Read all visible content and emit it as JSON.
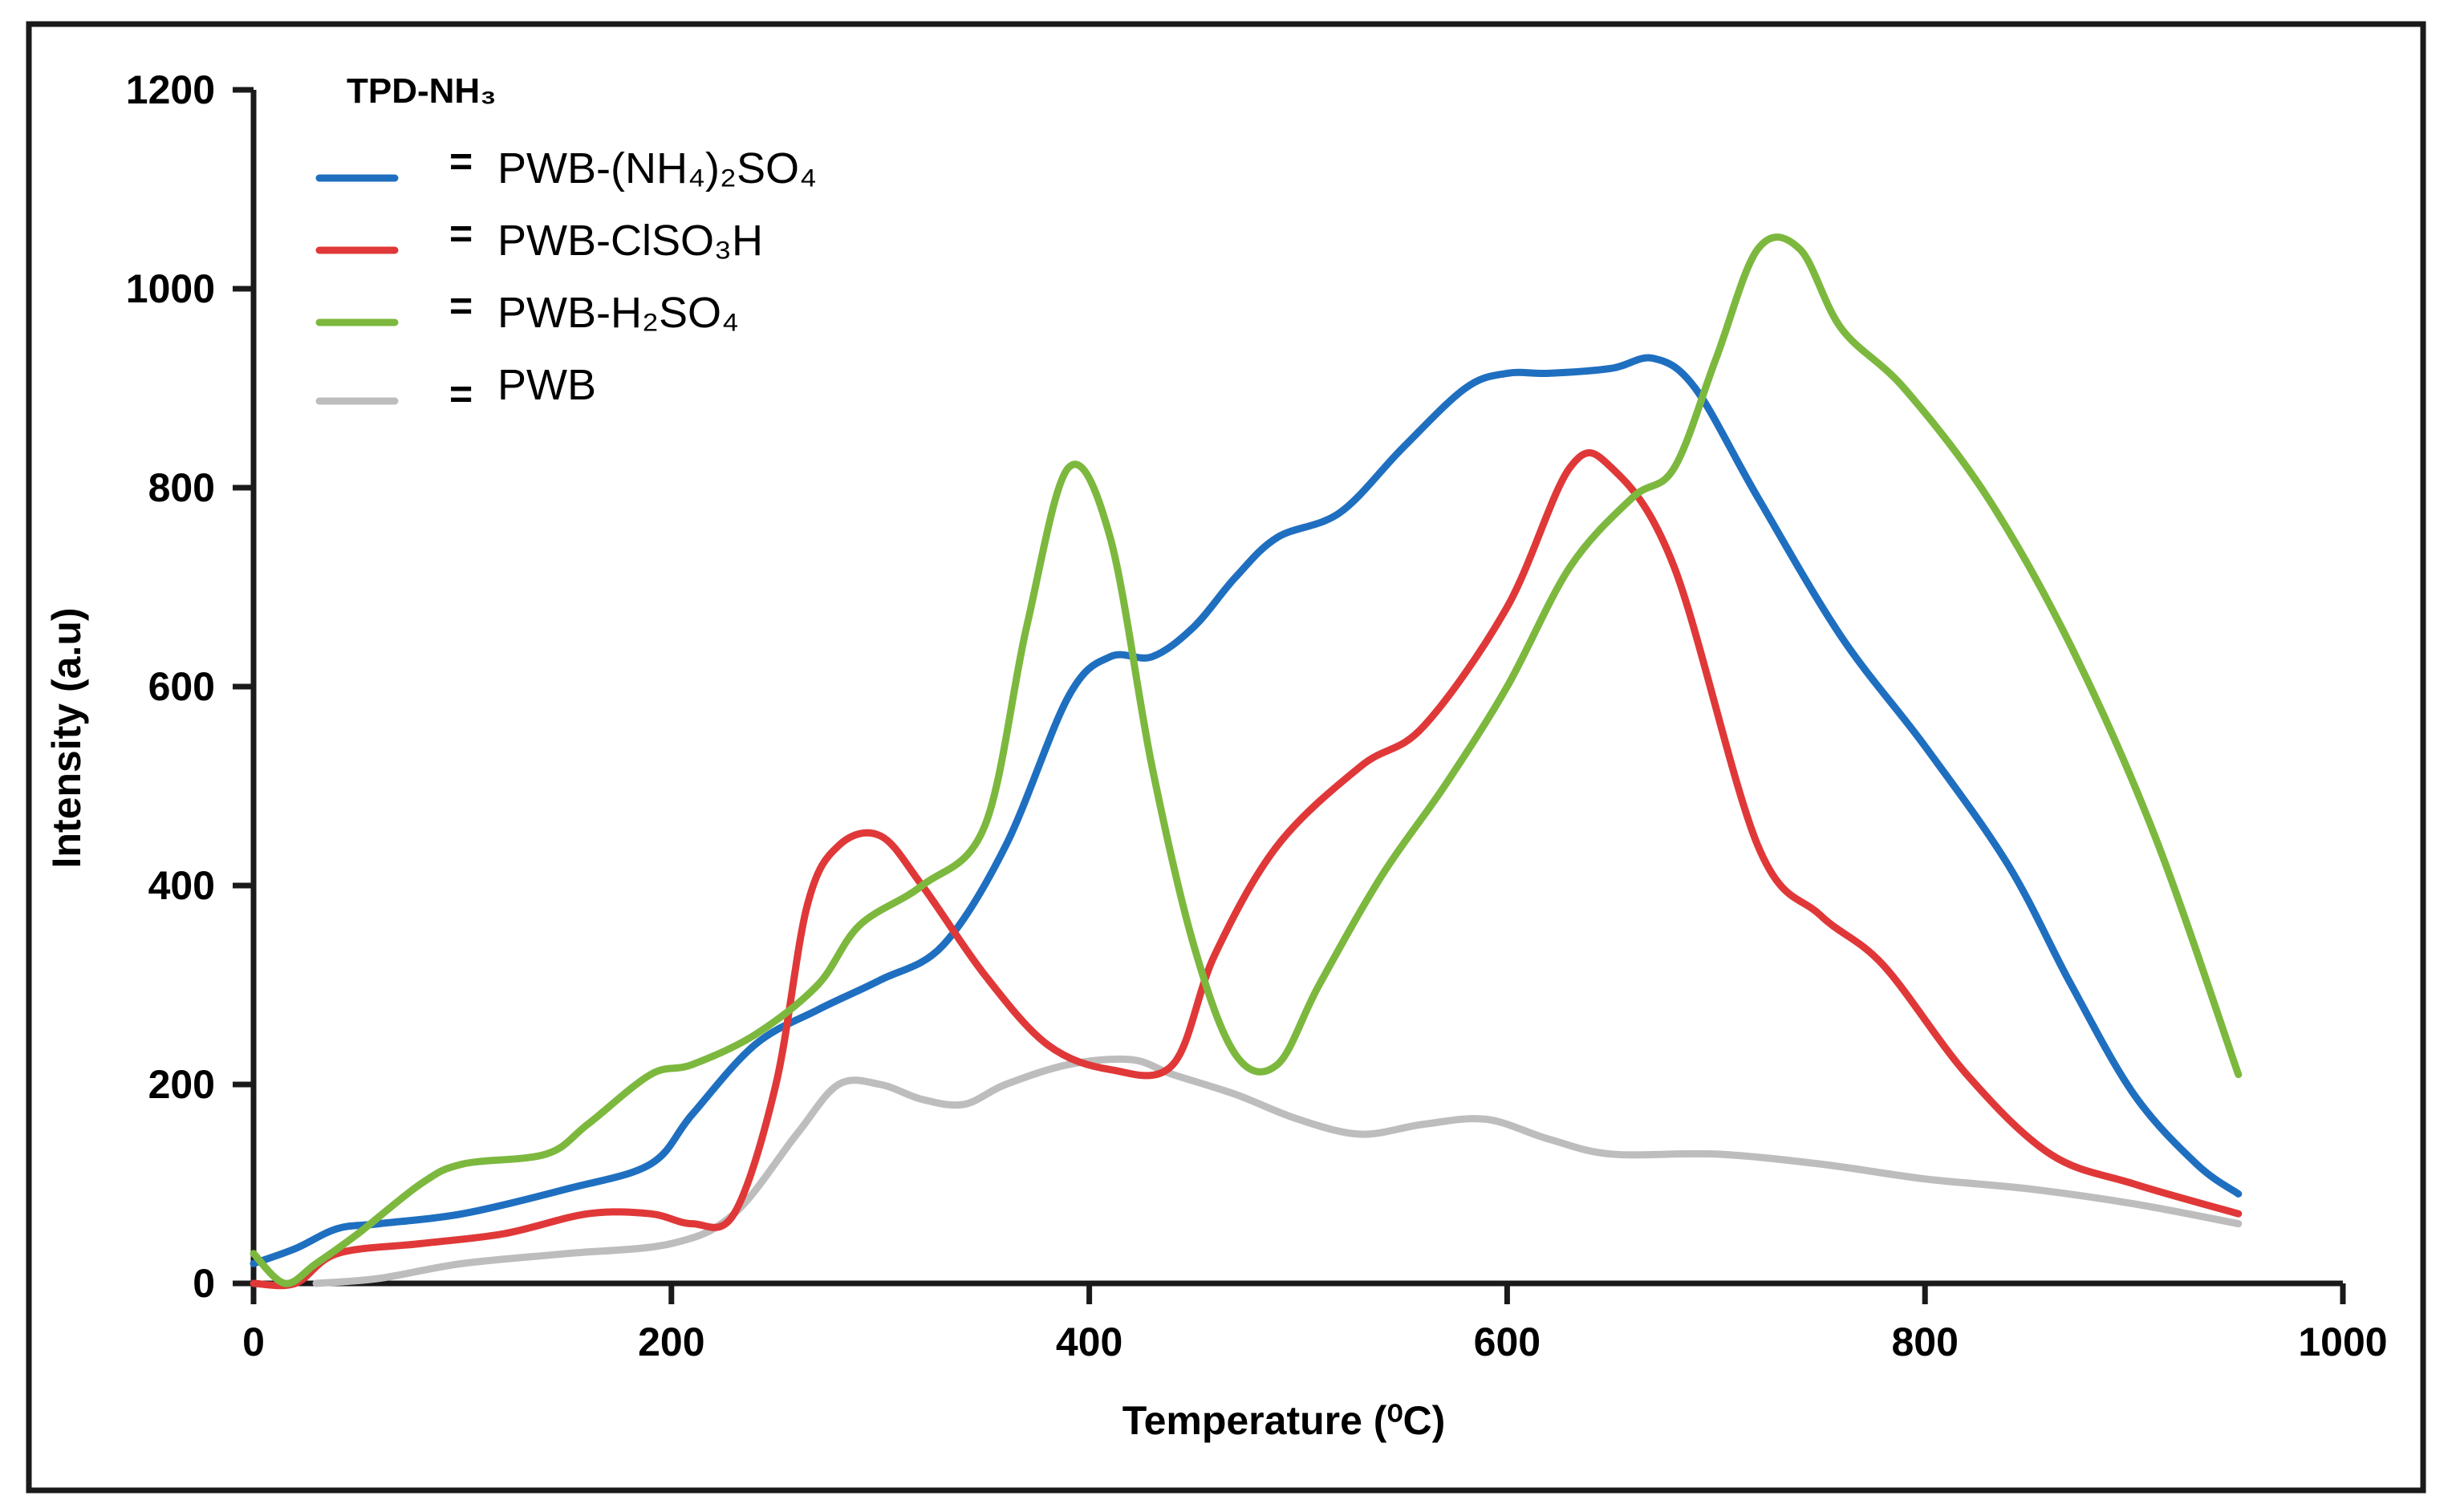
{
  "chart_data": {
    "type": "line",
    "title": "TPD-NH₃",
    "xlabel": "Temperature (⁰C)",
    "ylabel": "Intensity (a.u)",
    "xlim": [
      0,
      1000
    ],
    "ylim": [
      0,
      1200
    ],
    "xticks": [
      0,
      200,
      400,
      600,
      800,
      1000
    ],
    "yticks": [
      0,
      200,
      400,
      600,
      800,
      1000,
      1200
    ],
    "xtick_labels": [
      "0",
      "200",
      "400",
      "600",
      "800",
      "1000"
    ],
    "ytick_labels": [
      "0",
      "200",
      "400",
      "600",
      "800",
      "1000",
      "1200"
    ],
    "legend_position": "top-left",
    "series": [
      {
        "name": "PWB-(NH₄)₂SO₄",
        "legend_label": "PWB-(NH₄)₂SO₄",
        "color": "#1f6fc0",
        "x": [
          0,
          20,
          40,
          60,
          100,
          150,
          190,
          210,
          240,
          270,
          300,
          330,
          360,
          390,
          410,
          430,
          450,
          470,
          490,
          520,
          550,
          580,
          600,
          620,
          650,
          670,
          690,
          720,
          760,
          800,
          840,
          870,
          900,
          930,
          950
        ],
        "y": [
          20,
          35,
          55,
          60,
          70,
          95,
          120,
          170,
          240,
          275,
          305,
          340,
          440,
          590,
          630,
          630,
          660,
          710,
          750,
          775,
          840,
          900,
          915,
          915,
          920,
          930,
          900,
          790,
          650,
          540,
          420,
          300,
          190,
          120,
          90
        ]
      },
      {
        "name": "PWB-ClSO₃H",
        "legend_label": "PWB-ClSO₃H",
        "color": "#e03838",
        "x": [
          0,
          20,
          40,
          80,
          120,
          160,
          190,
          210,
          230,
          250,
          265,
          280,
          300,
          320,
          350,
          380,
          410,
          440,
          460,
          490,
          530,
          560,
          600,
          630,
          650,
          680,
          720,
          750,
          780,
          820,
          860,
          900,
          950
        ],
        "y": [
          0,
          0,
          30,
          40,
          50,
          70,
          70,
          60,
          70,
          200,
          380,
          440,
          450,
          400,
          310,
          240,
          215,
          220,
          330,
          440,
          520,
          560,
          680,
          820,
          820,
          720,
          440,
          370,
          320,
          210,
          130,
          100,
          70
        ]
      },
      {
        "name": "PWB-H₂SO₄",
        "legend_label": "PWB-H₂SO₄",
        "color": "#7cb83e",
        "x": [
          0,
          15,
          30,
          50,
          80,
          100,
          140,
          160,
          190,
          210,
          240,
          270,
          290,
          320,
          350,
          370,
          390,
          410,
          430,
          450,
          470,
          490,
          510,
          540,
          570,
          600,
          630,
          660,
          680,
          700,
          720,
          740,
          760,
          790,
          830,
          870,
          910,
          950
        ],
        "y": [
          30,
          0,
          20,
          50,
          100,
          120,
          130,
          160,
          210,
          220,
          250,
          300,
          360,
          400,
          460,
          660,
          820,
          750,
          520,
          340,
          230,
          220,
          300,
          410,
          500,
          600,
          720,
          790,
          820,
          930,
          1040,
          1040,
          960,
          900,
          790,
          640,
          450,
          210
        ]
      },
      {
        "name": "PWB",
        "legend_label": "PWB",
        "color": "#bdbdbd",
        "x": [
          30,
          60,
          100,
          150,
          200,
          230,
          260,
          280,
          300,
          320,
          340,
          360,
          390,
          420,
          440,
          470,
          500,
          530,
          560,
          590,
          620,
          650,
          700,
          750,
          800,
          850,
          900,
          950
        ],
        "y": [
          0,
          5,
          20,
          30,
          40,
          70,
          150,
          200,
          200,
          185,
          180,
          200,
          220,
          225,
          210,
          190,
          165,
          150,
          160,
          165,
          145,
          130,
          130,
          120,
          105,
          95,
          80,
          60
        ]
      }
    ]
  }
}
